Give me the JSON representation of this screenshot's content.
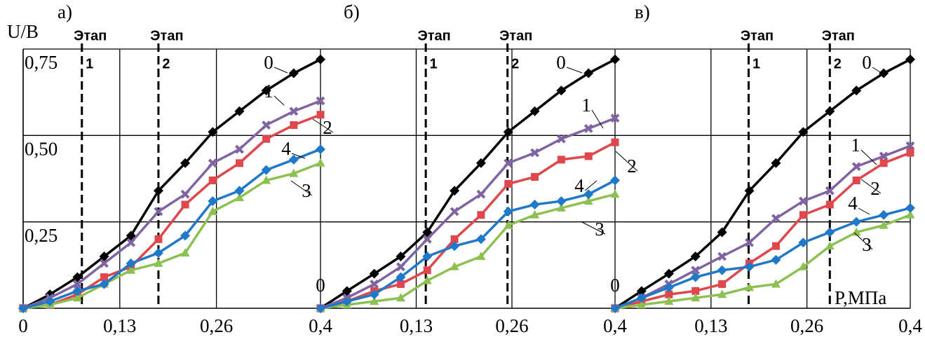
{
  "chart_data": [
    {
      "type": "line",
      "title": "а)",
      "ylabel": "U/В",
      "x": [
        0,
        0.036,
        0.073,
        0.109,
        0.145,
        0.182,
        0.218,
        0.255,
        0.291,
        0.327,
        0.364,
        0.4
      ],
      "xlim": [
        0,
        0.4
      ],
      "ylim": [
        0,
        0.75
      ],
      "xticks": [
        0,
        {
          "value": 0.13,
          "label": "0,13"
        },
        {
          "value": 0.26,
          "label": "0,26"
        },
        {
          "value": 0.4,
          "label": "0,4"
        }
      ],
      "yticks": [
        {
          "value": 0.25,
          "label": "0,25"
        },
        {
          "value": 0.5,
          "label": "0,50"
        },
        {
          "value": 0.75,
          "label": "0,75"
        }
      ],
      "grid": true,
      "stages": [
        {
          "x": 0.079,
          "label": "Этап",
          "number": "1"
        },
        {
          "x": 0.182,
          "label": "Этап",
          "number": "2"
        }
      ],
      "series": [
        {
          "name": "0",
          "color": "#000000",
          "marker": "diamond",
          "values": [
            0,
            0.04,
            0.09,
            0.15,
            0.21,
            0.34,
            0.42,
            0.51,
            0.57,
            0.63,
            0.68,
            0.72
          ]
        },
        {
          "name": "1",
          "color": "#8064a2",
          "marker": "cross",
          "values": [
            0,
            0.03,
            0.07,
            0.13,
            0.19,
            0.28,
            0.33,
            0.42,
            0.46,
            0.53,
            0.57,
            0.6
          ]
        },
        {
          "name": "2",
          "color": "#e0474c",
          "marker": "square",
          "values": [
            0,
            0.01,
            0.04,
            0.09,
            0.12,
            0.2,
            0.3,
            0.37,
            0.42,
            0.49,
            0.53,
            0.56
          ]
        },
        {
          "name": "3",
          "color": "#8cc152",
          "marker": "triangle",
          "values": [
            0,
            0.01,
            0.03,
            0.07,
            0.11,
            0.13,
            0.16,
            0.28,
            0.32,
            0.37,
            0.39,
            0.42
          ]
        },
        {
          "name": "4",
          "color": "#1f78c8",
          "marker": "diamond",
          "values": [
            0,
            0.02,
            0.05,
            0.07,
            0.13,
            0.16,
            0.21,
            0.31,
            0.34,
            0.4,
            0.43,
            0.46
          ]
        }
      ]
    },
    {
      "type": "line",
      "title": "б)",
      "x": [
        0,
        0.036,
        0.073,
        0.109,
        0.145,
        0.182,
        0.218,
        0.255,
        0.291,
        0.327,
        0.364,
        0.4
      ],
      "xlim": [
        0,
        0.4
      ],
      "ylim": [
        0,
        0.75
      ],
      "xticks": [
        {
          "value": 0.13,
          "label": "0,13"
        },
        {
          "value": 0.26,
          "label": "0,26"
        },
        {
          "value": 0.4,
          "label": "0,4"
        }
      ],
      "yticks": [
        0
      ],
      "grid": true,
      "stages": [
        {
          "x": 0.143,
          "label": "Этап",
          "number": "1"
        },
        {
          "x": 0.254,
          "label": "Этап",
          "number": "2"
        }
      ],
      "series": [
        {
          "name": "0",
          "color": "#000000",
          "marker": "diamond",
          "values": [
            0,
            0.05,
            0.1,
            0.15,
            0.22,
            0.34,
            0.42,
            0.51,
            0.57,
            0.63,
            0.68,
            0.72
          ]
        },
        {
          "name": "1",
          "color": "#8064a2",
          "marker": "cross",
          "values": [
            0,
            0.03,
            0.07,
            0.12,
            0.2,
            0.28,
            0.33,
            0.42,
            0.45,
            0.49,
            0.52,
            0.55
          ]
        },
        {
          "name": "2",
          "color": "#e0474c",
          "marker": "square",
          "values": [
            0,
            0.02,
            0.05,
            0.07,
            0.11,
            0.2,
            0.27,
            0.36,
            0.38,
            0.43,
            0.44,
            0.48
          ]
        },
        {
          "name": "3",
          "color": "#8cc152",
          "marker": "triangle",
          "values": [
            0,
            0.01,
            0.02,
            0.03,
            0.08,
            0.12,
            0.15,
            0.24,
            0.27,
            0.29,
            0.31,
            0.33
          ]
        },
        {
          "name": "4",
          "color": "#1f78c8",
          "marker": "diamond",
          "values": [
            0,
            0.02,
            0.04,
            0.09,
            0.15,
            0.18,
            0.2,
            0.28,
            0.3,
            0.31,
            0.33,
            0.37
          ]
        }
      ]
    },
    {
      "type": "line",
      "title": "в)",
      "xlabel": "P,МПа",
      "x": [
        0,
        0.036,
        0.073,
        0.109,
        0.145,
        0.182,
        0.218,
        0.255,
        0.291,
        0.327,
        0.364,
        0.4
      ],
      "xlim": [
        0,
        0.4
      ],
      "ylim": [
        0,
        0.75
      ],
      "xticks": [
        {
          "value": 0.13,
          "label": "0,13"
        },
        {
          "value": 0.26,
          "label": "0,26"
        },
        {
          "value": 0.4,
          "label": "0,4"
        }
      ],
      "yticks": [
        0
      ],
      "grid": true,
      "stages": [
        {
          "x": 0.181,
          "label": "Этап",
          "number": "1"
        },
        {
          "x": 0.291,
          "label": "Этап",
          "number": "2"
        }
      ],
      "series": [
        {
          "name": "0",
          "color": "#000000",
          "marker": "diamond",
          "values": [
            0,
            0.05,
            0.1,
            0.15,
            0.22,
            0.34,
            0.42,
            0.51,
            0.57,
            0.63,
            0.68,
            0.72
          ]
        },
        {
          "name": "1",
          "color": "#8064a2",
          "marker": "cross",
          "values": [
            0,
            0.03,
            0.07,
            0.11,
            0.15,
            0.19,
            0.26,
            0.31,
            0.34,
            0.41,
            0.44,
            0.47
          ]
        },
        {
          "name": "2",
          "color": "#e0474c",
          "marker": "square",
          "values": [
            0,
            0.02,
            0.04,
            0.05,
            0.07,
            0.13,
            0.18,
            0.27,
            0.3,
            0.37,
            0.42,
            0.45
          ]
        },
        {
          "name": "3",
          "color": "#8cc152",
          "marker": "triangle",
          "values": [
            0,
            0.01,
            0.02,
            0.03,
            0.04,
            0.06,
            0.07,
            0.12,
            0.18,
            0.22,
            0.24,
            0.27
          ]
        },
        {
          "name": "4",
          "color": "#1f78c8",
          "marker": "diamond",
          "values": [
            0,
            0.03,
            0.06,
            0.09,
            0.11,
            0.12,
            0.14,
            0.19,
            0.22,
            0.25,
            0.27,
            0.29
          ]
        }
      ]
    }
  ]
}
